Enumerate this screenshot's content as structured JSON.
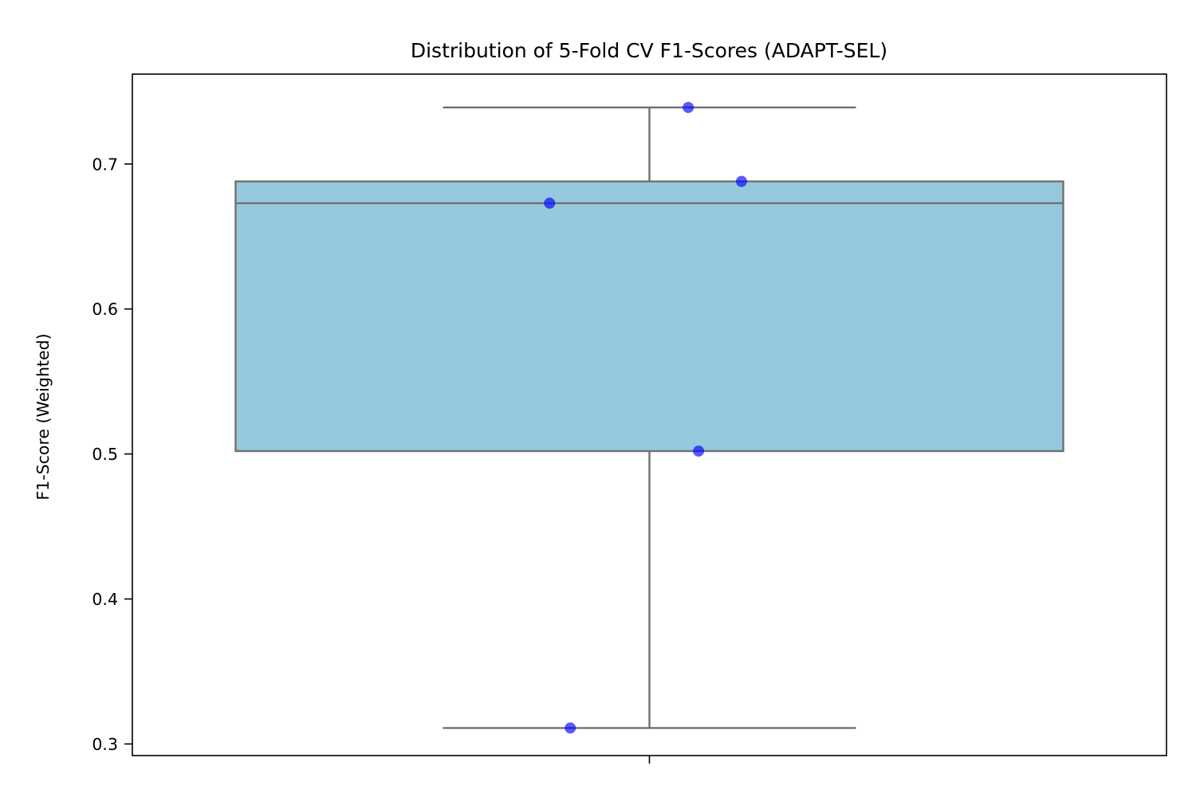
{
  "chart_data": {
    "type": "box",
    "title": "Distribution of 5-Fold CV F1-Scores (ADAPT-SEL)",
    "xlabel": "",
    "ylabel": "F1-Score (Weighted)",
    "ylim": [
      0.292,
      0.762
    ],
    "yticks": [
      0.3,
      0.4,
      0.5,
      0.6,
      0.7
    ],
    "ytick_labels": [
      "0.3",
      "0.4",
      "0.5",
      "0.6",
      "0.7"
    ],
    "grid": false,
    "box": {
      "min": 0.311,
      "q1": 0.502,
      "median": 0.673,
      "q3": 0.688,
      "max": 0.739,
      "fill_color": "#96c9de",
      "line_color": "#707070"
    },
    "points": {
      "color": "#0000ff",
      "values": [
        0.739,
        0.688,
        0.673,
        0.502,
        0.311
      ],
      "jitter": [
        0.075,
        0.178,
        -0.193,
        0.095,
        -0.153
      ]
    }
  }
}
